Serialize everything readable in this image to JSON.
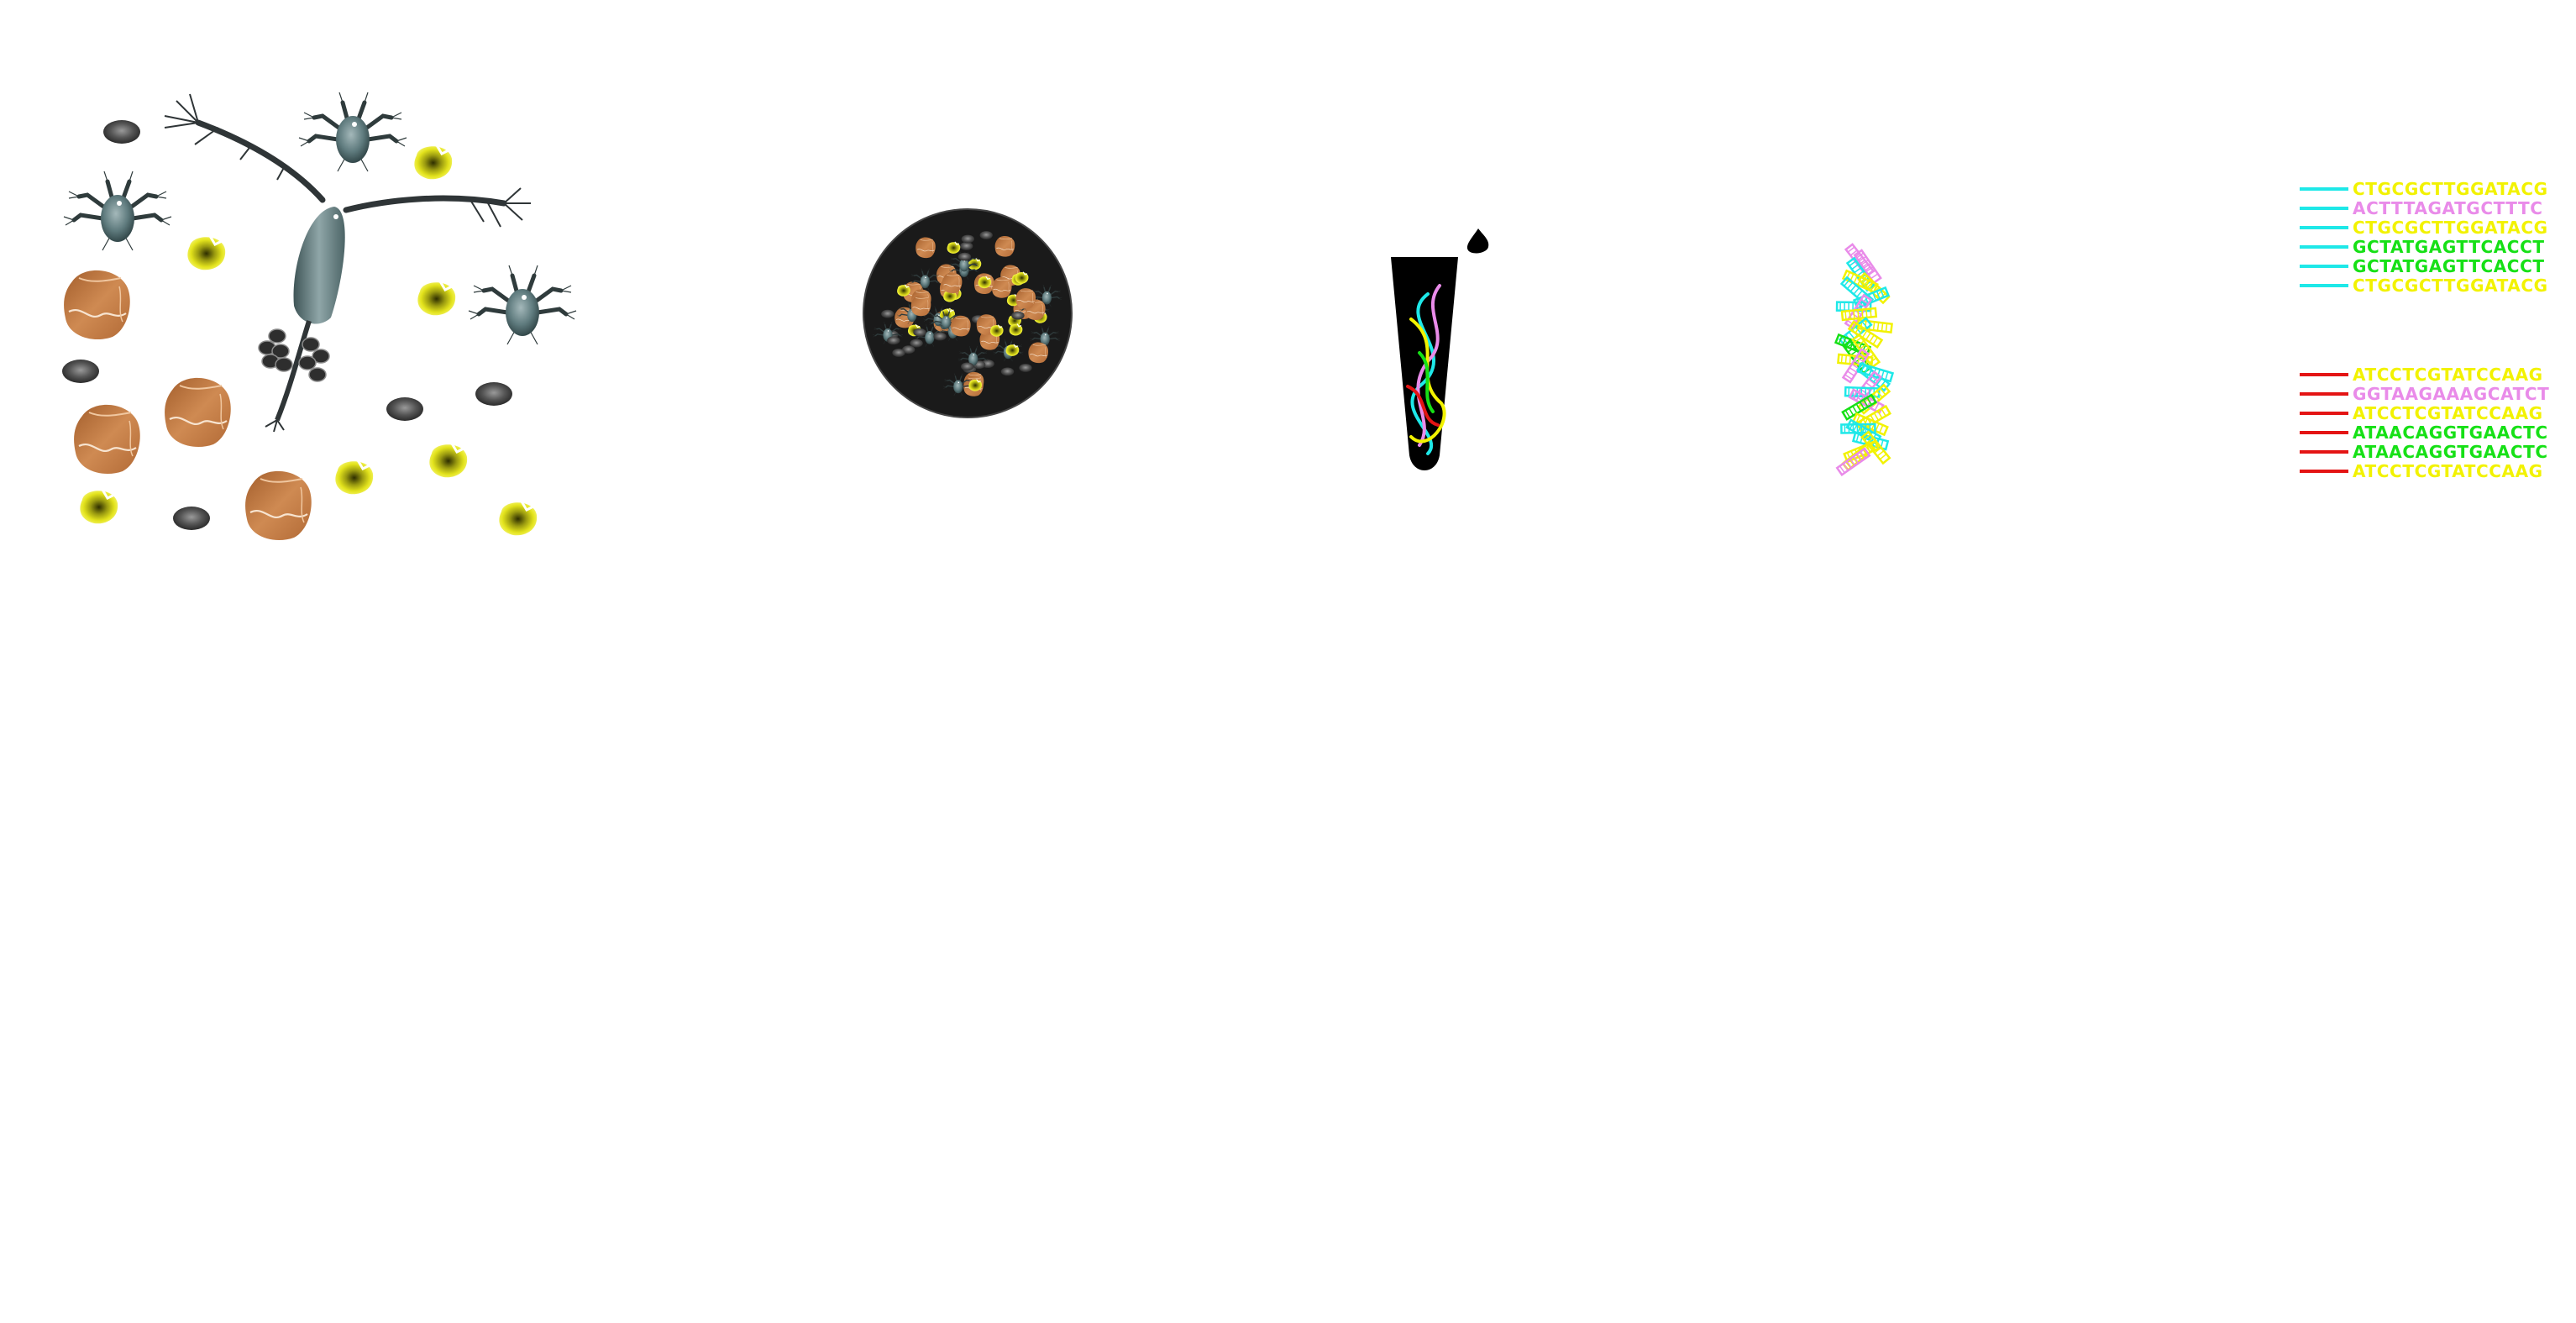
{
  "panels": {
    "organisms": {
      "label": ""
    },
    "sample": {
      "label": ""
    },
    "extraction_tube": {
      "label": ""
    },
    "fragments": {
      "label": ""
    },
    "reads": {
      "label": ""
    }
  },
  "colors": {
    "cyan": "#1ee8e8",
    "magenta": "#e98be9",
    "yellow": "#f2f200",
    "green": "#16e016",
    "red": "#e41414",
    "copepod": "#5f7b7e",
    "diatom": "#b9733f",
    "algae": "#c9c91a",
    "pellet": "#4a4a4a"
  },
  "icons": {
    "copepod": "copepod-icon",
    "mite": "mite-icon",
    "diatom": "diatom-icon",
    "algae": "algae-icon",
    "pellet": "pellet-icon",
    "dish": "sample-dish-icon",
    "tube": "tube-icon",
    "drop": "drop-icon"
  },
  "reads": {
    "group1": [
      {
        "sequence": "CTGCGCTTGGATACG",
        "color": "#f2f200"
      },
      {
        "sequence": "ACTTTAGATGCTTTC",
        "color": "#e98be9"
      },
      {
        "sequence": "CTGCGCTTGGATACG",
        "color": "#f2f200"
      },
      {
        "sequence": "GCTATGAGTTCACCT",
        "color": "#16e016"
      },
      {
        "sequence": "GCTATGAGTTCACCT",
        "color": "#16e016"
      },
      {
        "sequence": "CTGCGCTTGGATACG",
        "color": "#f2f200"
      }
    ],
    "group1_tag_color": "#1ee8e8",
    "group2": [
      {
        "sequence": "ATCCTCGTATCCAAG",
        "color": "#f2f200"
      },
      {
        "sequence": "GGTAAGAAAGCATCT",
        "color": "#e98be9"
      },
      {
        "sequence": "ATCCTCGTATCCAAG",
        "color": "#f2f200"
      },
      {
        "sequence": "ATAACAGGTGAACTC",
        "color": "#16e016"
      },
      {
        "sequence": "ATAACAGGTGAACTC",
        "color": "#16e016"
      },
      {
        "sequence": "ATCCTCGTATCCAAG",
        "color": "#f2f200"
      }
    ],
    "group2_tag_color": "#e41414"
  }
}
